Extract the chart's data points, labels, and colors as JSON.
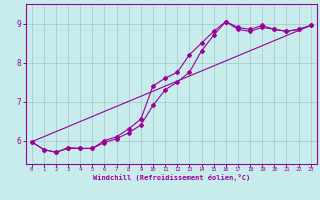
{
  "xlabel": "Windchill (Refroidissement éolien,°C)",
  "bg_color": "#c8ecec",
  "line_color": "#990099",
  "grid_color": "#aacccc",
  "xmin": -0.5,
  "xmax": 23.5,
  "ymin": 5.4,
  "ymax": 9.5,
  "yticks": [
    6,
    7,
    8,
    9
  ],
  "xticks": [
    0,
    1,
    2,
    3,
    4,
    5,
    6,
    7,
    8,
    9,
    10,
    11,
    12,
    13,
    14,
    15,
    16,
    17,
    18,
    19,
    20,
    21,
    22,
    23
  ],
  "line1_x": [
    0,
    1,
    2,
    3,
    4,
    5,
    6,
    7,
    8,
    9,
    10,
    11,
    12,
    13,
    14,
    15,
    16,
    17,
    18,
    19,
    20,
    21,
    22,
    23
  ],
  "line1_y": [
    5.97,
    5.77,
    5.7,
    5.82,
    5.8,
    5.8,
    6.0,
    6.1,
    6.3,
    6.55,
    7.4,
    7.6,
    7.75,
    8.2,
    8.5,
    8.8,
    9.05,
    8.9,
    8.85,
    8.95,
    8.85,
    8.8,
    8.85,
    8.95
  ],
  "line2_x": [
    0,
    1,
    2,
    3,
    4,
    5,
    6,
    7,
    8,
    9,
    10,
    11,
    12,
    13,
    14,
    15,
    16,
    17,
    18,
    19,
    20,
    21,
    22,
    23
  ],
  "line2_y": [
    5.97,
    5.77,
    5.7,
    5.8,
    5.8,
    5.8,
    5.95,
    6.05,
    6.2,
    6.4,
    6.9,
    7.3,
    7.5,
    7.75,
    8.3,
    8.7,
    9.05,
    8.85,
    8.8,
    8.9,
    8.85,
    8.8,
    8.85,
    8.95
  ],
  "line3_x": [
    0,
    23
  ],
  "line3_y": [
    5.97,
    8.95
  ],
  "marker": "D",
  "markersize": 2.0,
  "linewidth": 0.8
}
